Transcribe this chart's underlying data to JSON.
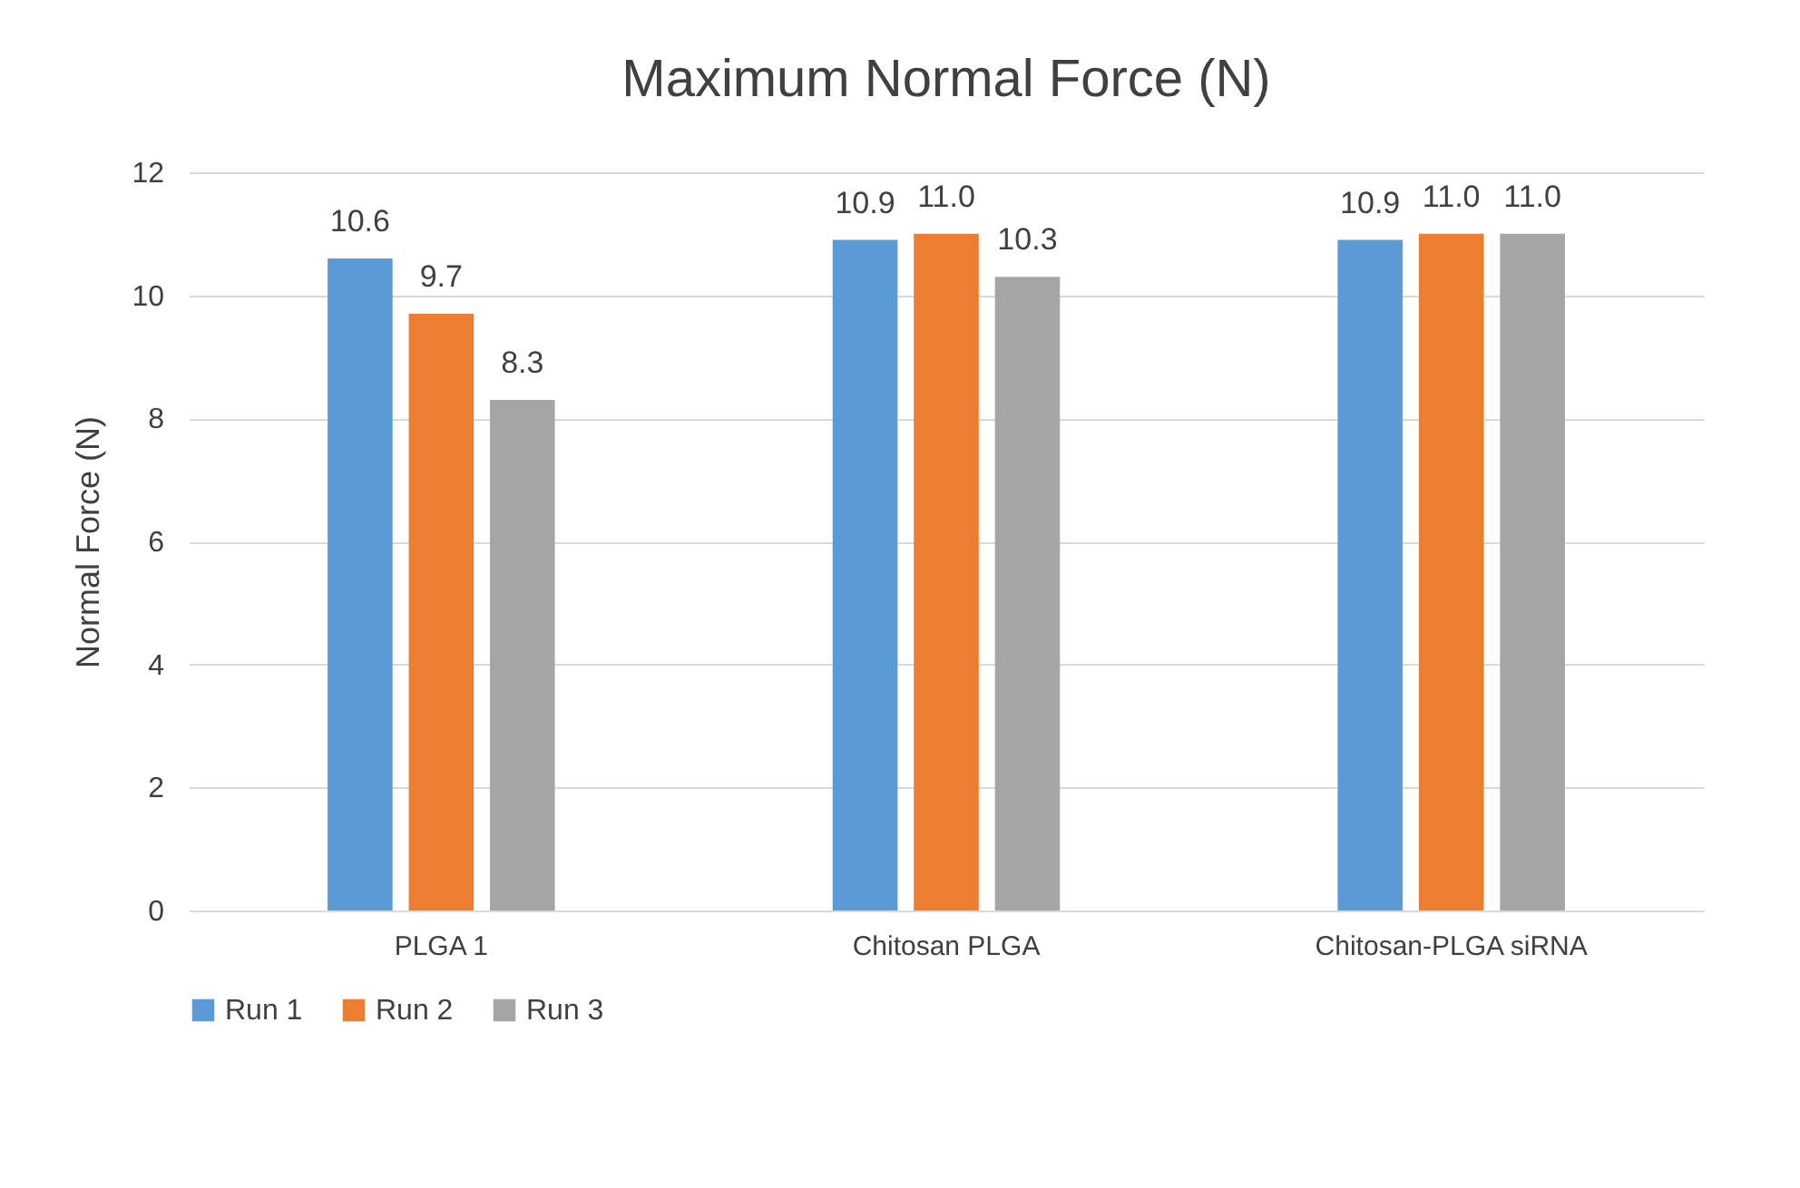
{
  "chart_data": {
    "type": "bar",
    "title": "Maximum Normal Force (N)",
    "ylabel": "Normal Force (N)",
    "categories": [
      "PLGA 1",
      "Chitosan PLGA",
      "Chitosan-PLGA siRNA"
    ],
    "series": [
      {
        "name": "Run 1",
        "color": "#5b9bd5",
        "values": [
          10.6,
          10.9,
          10.9
        ],
        "value_labels": [
          "10.6",
          "10.9",
          "10.9"
        ]
      },
      {
        "name": "Run 2",
        "color": "#ed7d31",
        "values": [
          9.7,
          11.0,
          11.0
        ],
        "value_labels": [
          "9.7",
          "11.0",
          "11.0"
        ]
      },
      {
        "name": "Run 3",
        "color": "#a5a5a5",
        "values": [
          8.3,
          10.3,
          11.0
        ],
        "value_labels": [
          "8.3",
          "10.3",
          "11.0"
        ]
      }
    ],
    "ylim": [
      0,
      12
    ],
    "yticks": [
      0,
      2,
      4,
      6,
      8,
      10,
      12
    ],
    "grid": "y",
    "legend": "bottom"
  }
}
